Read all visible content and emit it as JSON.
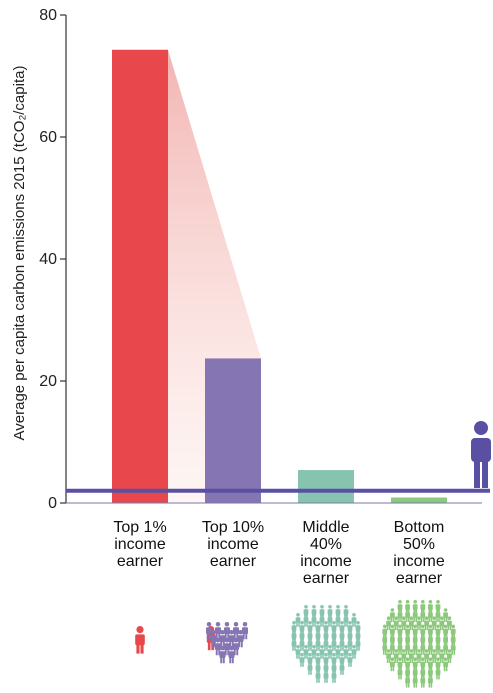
{
  "chart_data": {
    "type": "bar",
    "title": "",
    "ylabel": "Average per capita carbon emissions 2015 (tCO₂/capita)",
    "xlabel": "",
    "ylim": [
      0,
      80
    ],
    "yticks": [
      0,
      20,
      40,
      60,
      80
    ],
    "grid": false,
    "categories": [
      [
        "Top 1%",
        "income",
        "earner"
      ],
      [
        "Top 10%",
        "income",
        "earner"
      ],
      [
        "Middle",
        "40%",
        "income",
        "earner"
      ],
      [
        "Bottom",
        "50%",
        "income",
        "earner"
      ]
    ],
    "values": [
      74.3,
      23.7,
      5.4,
      0.9
    ],
    "colors": [
      "#e8484b",
      "#8575b3",
      "#86c4b0",
      "#8cc97c"
    ],
    "reference_line": {
      "value": 2.0,
      "color": "#5a50a3"
    },
    "icons": [
      "person-icon",
      "people-group-icon",
      "crowd-icon",
      "large-crowd-icon"
    ]
  }
}
